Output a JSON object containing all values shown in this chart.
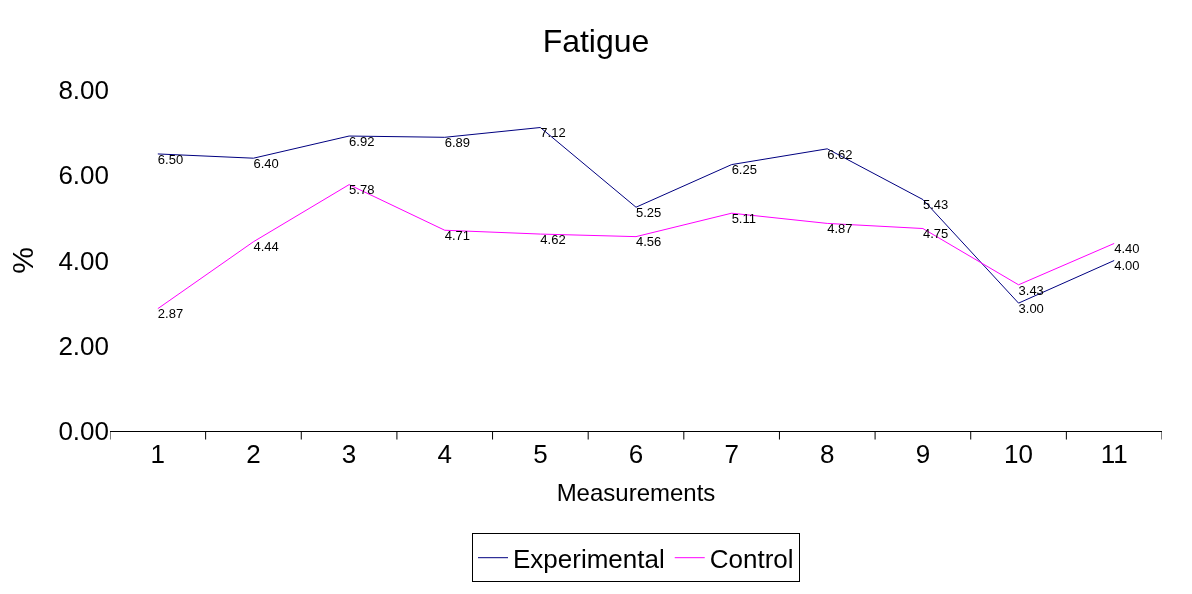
{
  "chart_data": {
    "type": "line",
    "title": "Fatigue",
    "xlabel": "Measurements",
    "ylabel": "%",
    "categories": [
      "1",
      "2",
      "3",
      "4",
      "5",
      "6",
      "7",
      "8",
      "9",
      "10",
      "11"
    ],
    "series": [
      {
        "name": "Experimental",
        "color": "#000080",
        "values": [
          6.5,
          6.4,
          6.92,
          6.89,
          7.12,
          5.25,
          6.25,
          6.62,
          5.43,
          3.0,
          4.0
        ],
        "value_labels": [
          "6.50",
          "6.40",
          "6.92",
          "6.89",
          "7.12",
          "5.25",
          "6.25",
          "6.62",
          "5.43",
          "3.00",
          "4.00"
        ]
      },
      {
        "name": "Control",
        "color": "#ff00ff",
        "values": [
          2.87,
          4.44,
          5.78,
          4.71,
          4.62,
          4.56,
          5.11,
          4.87,
          4.75,
          3.43,
          4.4
        ],
        "value_labels": [
          "2.87",
          "4.44",
          "5.78",
          "4.71",
          "4.62",
          "4.56",
          "5.11",
          "4.87",
          "4.75",
          "3.43",
          "4.40"
        ]
      }
    ],
    "ylim": [
      0,
      8
    ],
    "yticks": [
      {
        "value": 0,
        "label": "0.00"
      },
      {
        "value": 2,
        "label": "2.00"
      },
      {
        "value": 4,
        "label": "4.00"
      },
      {
        "value": 6,
        "label": "6.00"
      },
      {
        "value": 8,
        "label": "8.00"
      }
    ],
    "legend": "bottom"
  }
}
